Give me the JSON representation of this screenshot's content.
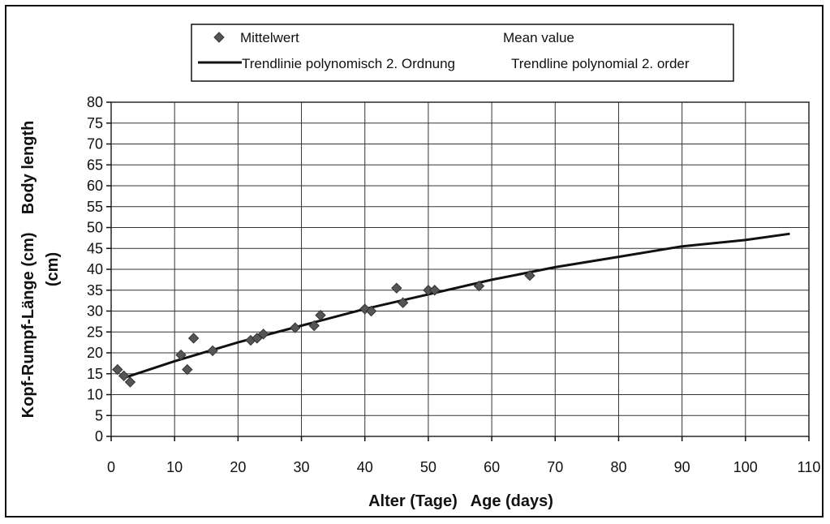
{
  "chart_data": {
    "type": "scatter",
    "title": "",
    "legend": {
      "placement": "top-center",
      "entries": [
        {
          "label_de": "Mittelwert",
          "label_en": "Mean value",
          "marker": "diamond"
        },
        {
          "label_de": "Trendlinie polynomisch 2. Ordnung",
          "label_en": "Trendline polynomial 2. order",
          "marker": "line"
        }
      ]
    },
    "xlabel": "Alter (Tage)   Age (days)",
    "ylabel_line1": "Kopf-Rumpf-Länge (cm)    Body length",
    "ylabel_line2": "(cm)",
    "xlim": [
      0,
      110
    ],
    "ylim": [
      0,
      80
    ],
    "xticks": [
      0,
      10,
      20,
      30,
      40,
      50,
      60,
      70,
      80,
      90,
      100,
      110
    ],
    "yticks": [
      0,
      5,
      10,
      15,
      20,
      25,
      30,
      35,
      40,
      45,
      50,
      55,
      60,
      65,
      70,
      75,
      80
    ],
    "grid": true,
    "series": [
      {
        "name": "Mittelwert",
        "type": "scatter",
        "x": [
          1,
          2,
          3,
          11,
          12,
          13,
          16,
          22,
          23,
          24,
          29,
          32,
          33,
          40,
          41,
          45,
          46,
          50,
          51,
          58,
          66
        ],
        "y": [
          16,
          14.5,
          13,
          19.5,
          16,
          23.5,
          20.5,
          23,
          23.5,
          24.5,
          26,
          26.5,
          29,
          30.5,
          30,
          35.5,
          32,
          35,
          35,
          36,
          38.5
        ]
      },
      {
        "name": "Trendlinie polynomisch 2. Ordnung",
        "type": "line",
        "x": [
          2,
          10,
          20,
          30,
          40,
          50,
          60,
          70,
          80,
          90,
          100,
          107
        ],
        "y": [
          14,
          18,
          22.5,
          26.5,
          30.5,
          34,
          37.5,
          40.5,
          43,
          45.5,
          47,
          48.5
        ]
      }
    ],
    "colors": {
      "marker": "#555555",
      "line": "#111111",
      "grid": "#333333"
    }
  }
}
